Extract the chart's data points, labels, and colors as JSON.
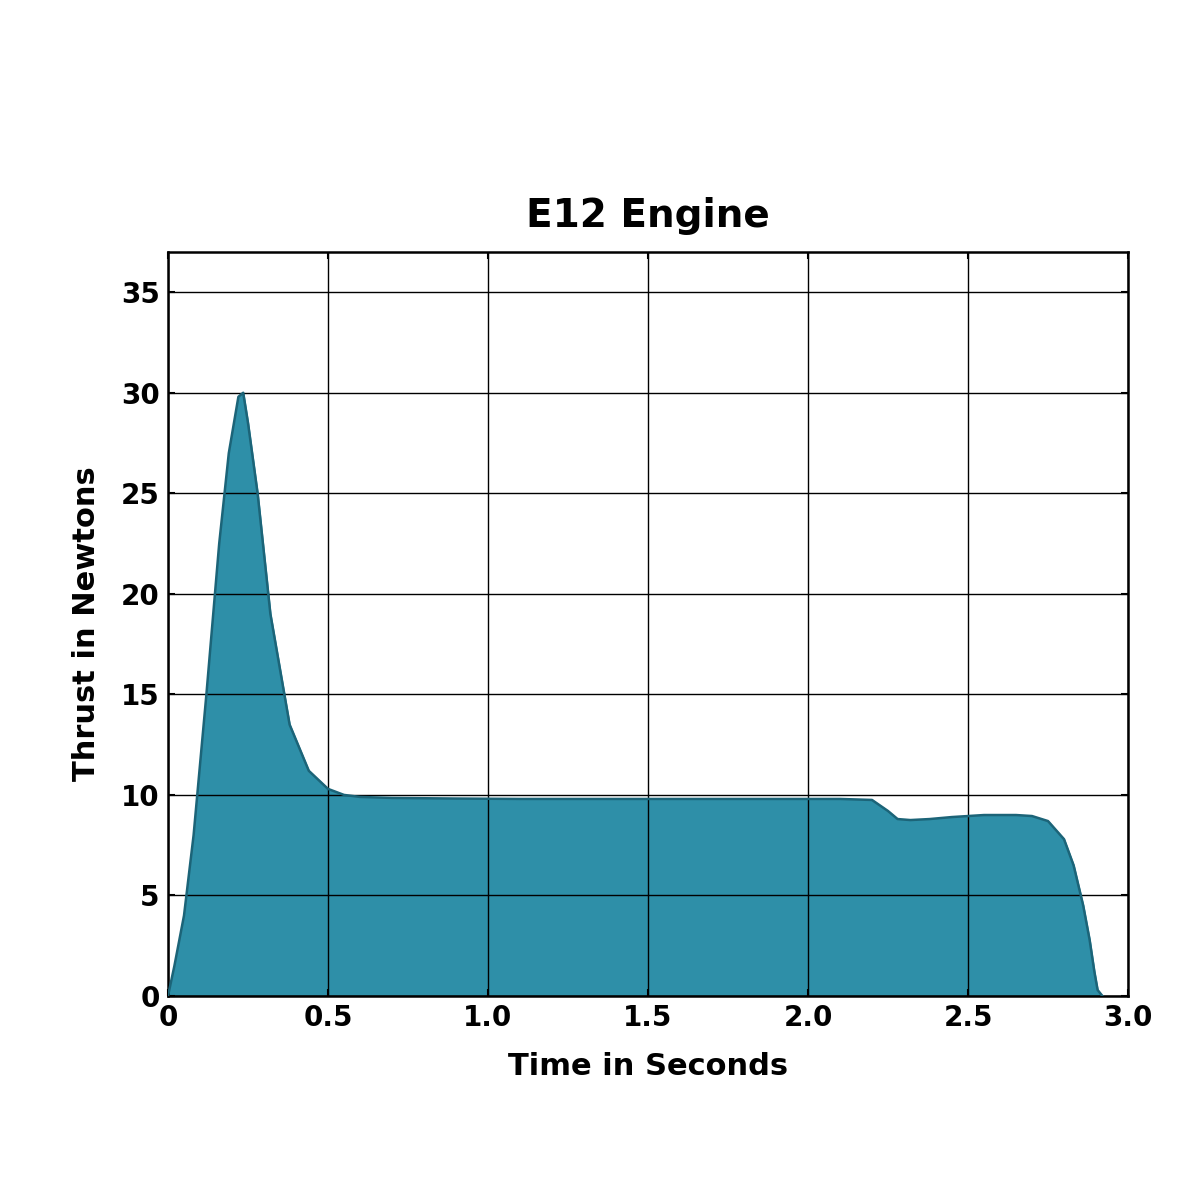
{
  "title": "E12 Engine",
  "xlabel": "Time in Seconds",
  "ylabel": "Thrust in Newtons",
  "fill_color": "#2e8fa8",
  "line_color": "#1c6478",
  "background_color": "#ffffff",
  "xlim": [
    0,
    3.0
  ],
  "ylim": [
    0,
    37
  ],
  "xticks": [
    0,
    0.5,
    1.0,
    1.5,
    2.0,
    2.5,
    3.0
  ],
  "yticks": [
    0,
    5,
    10,
    15,
    20,
    25,
    30,
    35
  ],
  "title_fontsize": 28,
  "label_fontsize": 22,
  "tick_fontsize": 20,
  "thrust_curve": [
    [
      0.0,
      0.0
    ],
    [
      0.02,
      1.5
    ],
    [
      0.05,
      4.0
    ],
    [
      0.08,
      8.0
    ],
    [
      0.12,
      15.0
    ],
    [
      0.16,
      22.5
    ],
    [
      0.19,
      27.0
    ],
    [
      0.22,
      29.8
    ],
    [
      0.235,
      30.0
    ],
    [
      0.25,
      28.5
    ],
    [
      0.28,
      25.0
    ],
    [
      0.32,
      19.0
    ],
    [
      0.38,
      13.5
    ],
    [
      0.44,
      11.2
    ],
    [
      0.5,
      10.3
    ],
    [
      0.55,
      10.0
    ],
    [
      0.6,
      9.9
    ],
    [
      0.7,
      9.85
    ],
    [
      0.9,
      9.82
    ],
    [
      1.1,
      9.8
    ],
    [
      1.3,
      9.8
    ],
    [
      1.5,
      9.8
    ],
    [
      1.7,
      9.8
    ],
    [
      1.9,
      9.8
    ],
    [
      2.1,
      9.8
    ],
    [
      2.2,
      9.75
    ],
    [
      2.25,
      9.2
    ],
    [
      2.28,
      8.8
    ],
    [
      2.32,
      8.75
    ],
    [
      2.38,
      8.8
    ],
    [
      2.45,
      8.9
    ],
    [
      2.55,
      9.0
    ],
    [
      2.65,
      9.0
    ],
    [
      2.7,
      8.95
    ],
    [
      2.75,
      8.7
    ],
    [
      2.8,
      7.8
    ],
    [
      2.83,
      6.5
    ],
    [
      2.86,
      4.5
    ],
    [
      2.88,
      2.8
    ],
    [
      2.895,
      1.2
    ],
    [
      2.905,
      0.3
    ],
    [
      2.92,
      0.0
    ]
  ]
}
